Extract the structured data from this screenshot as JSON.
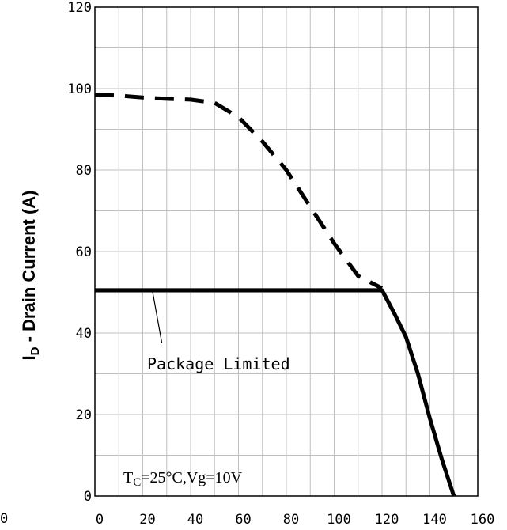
{
  "chart_data": {
    "type": "line",
    "xlabel": "",
    "ylabel": "I_D - Drain Current (A)",
    "ylabel_parts": {
      "main": "I",
      "sub": "D",
      "rest": " - Drain Current (A)"
    },
    "xlim": [
      0,
      160
    ],
    "ylim": [
      0,
      120
    ],
    "x_ticks": [
      "0",
      "20",
      "40",
      "60",
      "80",
      "100",
      "120",
      "140",
      "160"
    ],
    "y_ticks": [
      "0",
      "20",
      "40",
      "60",
      "80",
      "100",
      "120"
    ],
    "grid": true,
    "series": [
      {
        "style": "dashed",
        "color": "#000000",
        "x": [
          0,
          10,
          20,
          30,
          40,
          50,
          60,
          70,
          80,
          90,
          100,
          110,
          120
        ],
        "y": [
          98.5,
          98.3,
          97.8,
          97.5,
          97.3,
          96.5,
          93,
          87,
          80,
          71,
          62,
          54,
          51
        ]
      },
      {
        "style": "solid",
        "color": "#000000",
        "x": [
          0,
          20,
          40,
          60,
          80,
          100,
          120,
          125,
          130,
          135,
          140,
          145,
          150
        ],
        "y": [
          50.5,
          50.5,
          50.5,
          50.5,
          50.5,
          50.5,
          50.5,
          45,
          39,
          30,
          19,
          9,
          0
        ]
      }
    ],
    "annotations": {
      "package_limited": "Package Limited",
      "condition": {
        "t": "T",
        "sub": "C",
        "rest": "=25°C,Vg=10V"
      }
    },
    "stray_label": "0"
  }
}
